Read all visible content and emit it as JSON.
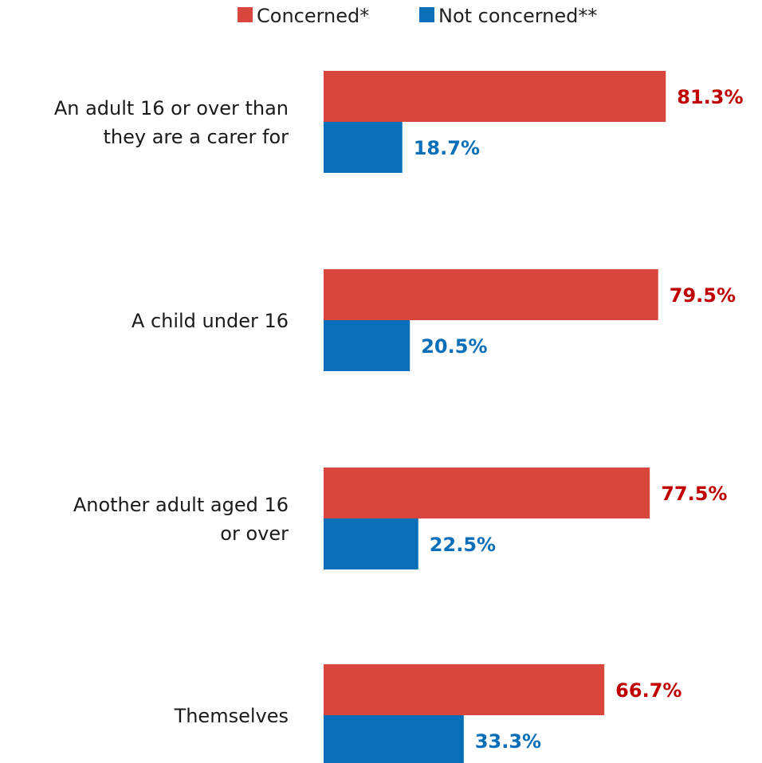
{
  "chart_data": {
    "type": "bar",
    "orientation": "horizontal",
    "categories": [
      [
        "An adult 16 or over than",
        "they are a carer for"
      ],
      [
        "A child under 16"
      ],
      [
        "Another adult aged 16",
        "or over"
      ],
      [
        "Themselves"
      ]
    ],
    "series": [
      {
        "name": "Concerned*",
        "color": "#d9473c",
        "label_color": "#c00000",
        "values": [
          81.3,
          79.5,
          77.5,
          66.7
        ],
        "labels": [
          "81.3%",
          "79.5%",
          "77.5%",
          "66.7%"
        ]
      },
      {
        "name": "Not concerned**",
        "color": "#0a6fb9",
        "label_color": "#0a6fb9",
        "values": [
          18.7,
          20.5,
          22.5,
          33.3
        ],
        "labels": [
          "18.7%",
          "20.5%",
          "22.5%",
          "33.3%"
        ]
      }
    ],
    "xlim": [
      0,
      100
    ],
    "grid": false,
    "legend_position": "top-center",
    "title": "",
    "xlabel": "",
    "ylabel": ""
  }
}
